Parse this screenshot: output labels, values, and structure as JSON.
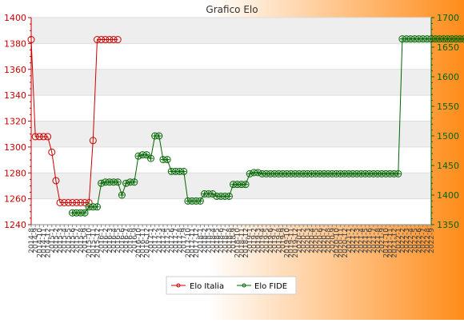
{
  "chart_data": {
    "type": "line",
    "title": "Grafico Elo",
    "left_axis": {
      "min": 1240,
      "max": 1400,
      "ticks": [
        1240,
        1260,
        1280,
        1300,
        1320,
        1340,
        1360,
        1380,
        1400
      ],
      "color": "#cc0000"
    },
    "right_axis": {
      "min": 1350,
      "max": 1700,
      "ticks": [
        1350,
        1400,
        1450,
        1500,
        1550,
        1600,
        1650,
        1700
      ],
      "color": "#006600"
    },
    "x_count": 98,
    "x_labels": [
      "2014-8",
      "2014-9",
      "2014-10",
      "2014-11",
      "2014-12",
      "2015-1",
      "2015-2",
      "2015-3",
      "2015-4",
      "2015-5",
      "2015-6",
      "2015-7",
      "2015-8",
      "2015-9",
      "2015-10",
      "2015-11",
      "2015-12",
      "2016-1",
      "2016-2",
      "2016-3",
      "2016-4",
      "2016-5",
      "2016-6",
      "2016-7",
      "2016-8",
      "2016-9",
      "2016-10",
      "2016-11",
      "2016-12",
      "2017-1",
      "2017-2",
      "2017-3",
      "2017-4",
      "2017-5",
      "2017-6",
      "2017-7",
      "2017-8",
      "2017-9",
      "2017-10",
      "2017-11",
      "2017-12",
      "2018-1",
      "2018-2",
      "2018-3",
      "2018-4",
      "2018-5",
      "2018-6",
      "2018-7",
      "2018-8",
      "2018-9",
      "2018-10",
      "2018-11",
      "2018-12",
      "2019-1",
      "2019-2",
      "2019-3",
      "2019-4",
      "2019-5",
      "2019-6",
      "2019-7",
      "2019-8",
      "2019-9",
      "2019-10",
      "2019-11",
      "2019-12",
      "2020-1",
      "2020-2",
      "2020-3",
      "2020-4",
      "2020-5",
      "2020-6",
      "2020-7",
      "2020-8",
      "2020-9",
      "2020-10",
      "2020-11",
      "2020-12",
      "2021-1",
      "2021-2",
      "2021-3",
      "2021-4",
      "2021-5",
      "2021-6",
      "2021-7",
      "2021-8",
      "2021-9",
      "2021-10",
      "2021-11",
      "2021-12",
      "2022-1",
      "2022-2",
      "2022-3",
      "2022-4",
      "2022-5",
      "2022-6",
      "2022-7",
      "2022-8",
      "2022-9"
    ],
    "series": [
      {
        "name": "Elo Italia",
        "axis": "left",
        "color": "#cc0000",
        "start_index": 0,
        "values": [
          1383,
          1308,
          1308,
          1308,
          1308,
          1296,
          1274,
          1257,
          1257,
          1257,
          1257,
          1257,
          1257,
          1257,
          1257,
          1305,
          1383,
          1383,
          1383,
          1383,
          1383,
          1383
        ]
      },
      {
        "name": "Elo FIDE",
        "axis": "right",
        "color": "#006600",
        "start_index": 10,
        "values": [
          1370,
          1370,
          1370,
          1370,
          1380,
          1380,
          1380,
          1420,
          1422,
          1422,
          1422,
          1422,
          1400,
          1420,
          1422,
          1422,
          1466,
          1468,
          1468,
          1462,
          1500,
          1500,
          1460,
          1460,
          1440,
          1440,
          1440,
          1440,
          1390,
          1390,
          1390,
          1390,
          1402,
          1402,
          1402,
          1398,
          1398,
          1398,
          1398,
          1418,
          1418,
          1418,
          1418,
          1436,
          1438,
          1438,
          1436,
          1436,
          1436,
          1436,
          1436,
          1436,
          1436,
          1436,
          1436,
          1436,
          1436,
          1436,
          1436,
          1436,
          1436,
          1436,
          1436,
          1436,
          1436,
          1436,
          1436,
          1436,
          1436,
          1436,
          1436,
          1436,
          1436,
          1436,
          1436,
          1436,
          1436,
          1436,
          1436,
          1436,
          1664,
          1664,
          1664,
          1664,
          1664,
          1664,
          1664,
          1664,
          1664,
          1664,
          1664,
          1664,
          1664,
          1664,
          1664,
          1664,
          1664,
          1664
        ]
      }
    ],
    "legend": [
      "Elo Italia",
      "Elo FIDE"
    ],
    "legend_position": "bottom-center",
    "grid": true,
    "colors": {
      "bg_left": "#ffffff",
      "bg_right": "#ff8c1a",
      "band": "#eeeeee",
      "plot_bg": "#ffffff"
    }
  }
}
